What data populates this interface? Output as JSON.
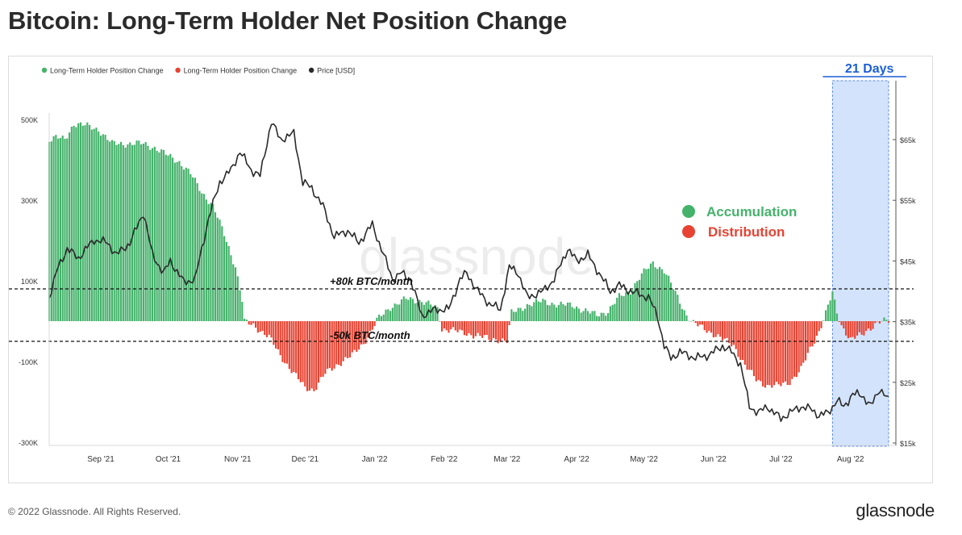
{
  "title": "Bitcoin: Long-Term Holder Net Position Change",
  "footer": {
    "copyright": "© 2022 Glassnode. All Rights Reserved.",
    "brand": "glassnode"
  },
  "watermark": "glassnode",
  "colors": {
    "positive": "#45b26b",
    "negative": "#e84332",
    "price": "#2a2a2a",
    "highlight": "#cfe0fb",
    "highlight_border": "#4a7fe0",
    "window_text": "#1a5fd6"
  },
  "chart_data": {
    "type": "bar",
    "legend": [
      {
        "label": "Long-Term Holder Position Change",
        "color": "#45b26b"
      },
      {
        "label": "Long-Term Holder Position Change",
        "color": "#e84332"
      },
      {
        "label": "Price [USD]",
        "color": "#2a2a2a"
      }
    ],
    "legend_position": "top-left",
    "x_ticks": [
      "Sep '21",
      "Oct '21",
      "Nov '21",
      "Dec '21",
      "Jan '22",
      "Feb '22",
      "Mar '22",
      "Apr '22",
      "May '22",
      "Jun '22",
      "Jul '22",
      "Aug '22"
    ],
    "x_range": [
      "2021-08-09",
      "2022-08-18"
    ],
    "y_left": {
      "label": "",
      "ticks": [
        "500K",
        "300K",
        "100K",
        "-100K",
        "-300K"
      ],
      "tick_values": [
        500000,
        300000,
        100000,
        -100000,
        -300000
      ],
      "range": [
        -300000,
        500000
      ]
    },
    "y_right": {
      "label": "",
      "ticks": [
        "$65k",
        "$55k",
        "$45k",
        "$35k",
        "$25k",
        "$15k"
      ],
      "tick_values": [
        65000,
        55000,
        45000,
        35000,
        25000,
        15000
      ],
      "range": [
        15000,
        70000
      ]
    },
    "grid": false,
    "position_change_keyframes": [
      [
        "2021-08-09",
        450000
      ],
      [
        "2021-08-12",
        455000
      ],
      [
        "2021-08-16",
        450000
      ],
      [
        "2021-08-20",
        490000
      ],
      [
        "2021-08-25",
        485000
      ],
      [
        "2021-08-31",
        475000
      ],
      [
        "2021-09-06",
        440000
      ],
      [
        "2021-09-12",
        440000
      ],
      [
        "2021-09-20",
        440000
      ],
      [
        "2021-09-25",
        430000
      ],
      [
        "2021-10-01",
        410000
      ],
      [
        "2021-10-06",
        395000
      ],
      [
        "2021-10-11",
        365000
      ],
      [
        "2021-10-16",
        320000
      ],
      [
        "2021-10-21",
        285000
      ],
      [
        "2021-10-26",
        215000
      ],
      [
        "2021-10-31",
        135000
      ],
      [
        "2021-11-03",
        50000
      ],
      [
        "2021-11-04",
        -2000
      ],
      [
        "2021-11-08",
        -10000
      ],
      [
        "2021-11-15",
        -40000
      ],
      [
        "2021-11-20",
        -85000
      ],
      [
        "2021-11-26",
        -130000
      ],
      [
        "2021-12-01",
        -165000
      ],
      [
        "2021-12-05",
        -170000
      ],
      [
        "2021-12-10",
        -130000
      ],
      [
        "2021-12-16",
        -105000
      ],
      [
        "2021-12-22",
        -85000
      ],
      [
        "2021-12-27",
        -55000
      ],
      [
        "2021-12-31",
        -20000
      ],
      [
        "2022-01-02",
        2000
      ],
      [
        "2022-01-08",
        35000
      ],
      [
        "2022-01-15",
        55000
      ],
      [
        "2022-01-22",
        50000
      ],
      [
        "2022-01-26",
        40000
      ],
      [
        "2022-01-29",
        30000
      ],
      [
        "2022-01-31",
        -20000
      ],
      [
        "2022-02-04",
        -20000
      ],
      [
        "2022-02-09",
        -30000
      ],
      [
        "2022-02-16",
        -35000
      ],
      [
        "2022-02-21",
        -45000
      ],
      [
        "2022-02-26",
        -45000
      ],
      [
        "2022-03-01",
        -50000
      ],
      [
        "2022-03-03",
        20000
      ],
      [
        "2022-03-10",
        40000
      ],
      [
        "2022-03-17",
        50000
      ],
      [
        "2022-03-24",
        40000
      ],
      [
        "2022-03-30",
        40000
      ],
      [
        "2022-04-05",
        25000
      ],
      [
        "2022-04-10",
        15000
      ],
      [
        "2022-04-15",
        25000
      ],
      [
        "2022-04-20",
        60000
      ],
      [
        "2022-04-25",
        75000
      ],
      [
        "2022-04-30",
        115000
      ],
      [
        "2022-05-05",
        145000
      ],
      [
        "2022-05-10",
        125000
      ],
      [
        "2022-05-16",
        60000
      ],
      [
        "2022-05-20",
        15000
      ],
      [
        "2022-05-23",
        -5000
      ],
      [
        "2022-05-30",
        -25000
      ],
      [
        "2022-06-05",
        -45000
      ],
      [
        "2022-06-10",
        -60000
      ],
      [
        "2022-06-15",
        -110000
      ],
      [
        "2022-06-20",
        -145000
      ],
      [
        "2022-06-25",
        -160000
      ],
      [
        "2022-06-30",
        -160000
      ],
      [
        "2022-07-05",
        -150000
      ],
      [
        "2022-07-10",
        -120000
      ],
      [
        "2022-07-14",
        -70000
      ],
      [
        "2022-07-18",
        -25000
      ],
      [
        "2022-07-21",
        20000
      ],
      [
        "2022-07-24",
        70000
      ],
      [
        "2022-07-26",
        20000
      ],
      [
        "2022-07-28",
        -10000
      ],
      [
        "2022-08-01",
        -45000
      ],
      [
        "2022-08-06",
        -35000
      ],
      [
        "2022-08-09",
        -20000
      ],
      [
        "2022-08-13",
        -3000
      ],
      [
        "2022-08-17",
        0
      ]
    ],
    "price_keyframes": [
      [
        "2021-08-09",
        39000
      ],
      [
        "2021-08-13",
        44000
      ],
      [
        "2021-08-17",
        47000
      ],
      [
        "2021-08-22",
        45500
      ],
      [
        "2021-08-29",
        48500
      ],
      [
        "2021-09-04",
        48000
      ],
      [
        "2021-09-08",
        46000
      ],
      [
        "2021-09-14",
        48000
      ],
      [
        "2021-09-20",
        53000
      ],
      [
        "2021-09-24",
        46000
      ],
      [
        "2021-09-29",
        43000
      ],
      [
        "2021-10-02",
        45000
      ],
      [
        "2021-10-08",
        41500
      ],
      [
        "2021-10-13",
        42000
      ],
      [
        "2021-10-19",
        52000
      ],
      [
        "2021-10-24",
        58000
      ],
      [
        "2021-10-29",
        60000
      ],
      [
        "2021-11-02",
        63000
      ],
      [
        "2021-11-07",
        60000
      ],
      [
        "2021-11-11",
        59000
      ],
      [
        "2021-11-16",
        68000
      ],
      [
        "2021-11-20",
        65000
      ],
      [
        "2021-11-26",
        66000
      ],
      [
        "2021-11-30",
        58000
      ],
      [
        "2021-12-04",
        57000
      ],
      [
        "2021-12-09",
        54000
      ],
      [
        "2021-12-14",
        49000
      ],
      [
        "2021-12-20",
        50000
      ],
      [
        "2021-12-25",
        48000
      ],
      [
        "2021-12-31",
        51000
      ],
      [
        "2022-01-04",
        47000
      ],
      [
        "2022-01-09",
        42000
      ],
      [
        "2022-01-13",
        43000
      ],
      [
        "2022-01-17",
        42000
      ],
      [
        "2022-01-22",
        36000
      ],
      [
        "2022-01-28",
        37000
      ],
      [
        "2022-02-03",
        37000
      ],
      [
        "2022-02-08",
        42000
      ],
      [
        "2022-02-11",
        43000
      ],
      [
        "2022-02-16",
        40000
      ],
      [
        "2022-02-21",
        38000
      ],
      [
        "2022-02-26",
        37000
      ],
      [
        "2022-03-02",
        44000
      ],
      [
        "2022-03-06",
        43000
      ],
      [
        "2022-03-10",
        39000
      ],
      [
        "2022-03-17",
        40000
      ],
      [
        "2022-03-22",
        42000
      ],
      [
        "2022-03-28",
        47000
      ],
      [
        "2022-04-01",
        45000
      ],
      [
        "2022-04-06",
        46000
      ],
      [
        "2022-04-11",
        43000
      ],
      [
        "2022-04-16",
        40000
      ],
      [
        "2022-04-20",
        41000
      ],
      [
        "2022-04-25",
        40000
      ],
      [
        "2022-05-03",
        39000
      ],
      [
        "2022-05-07",
        36000
      ],
      [
        "2022-05-10",
        31000
      ],
      [
        "2022-05-13",
        29000
      ],
      [
        "2022-05-17",
        30000
      ],
      [
        "2022-05-24",
        29000
      ],
      [
        "2022-05-30",
        29500
      ],
      [
        "2022-06-05",
        31000
      ],
      [
        "2022-06-09",
        30000
      ],
      [
        "2022-06-13",
        28000
      ],
      [
        "2022-06-17",
        21000
      ],
      [
        "2022-06-21",
        20000
      ],
      [
        "2022-06-25",
        21000
      ],
      [
        "2022-07-01",
        19000
      ],
      [
        "2022-07-05",
        20000
      ],
      [
        "2022-07-10",
        21000
      ],
      [
        "2022-07-15",
        20500
      ],
      [
        "2022-07-18",
        19500
      ],
      [
        "2022-07-22",
        20000
      ],
      [
        "2022-07-26",
        22000
      ],
      [
        "2022-07-29",
        21000
      ],
      [
        "2022-08-02",
        23000
      ],
      [
        "2022-08-06",
        23000
      ],
      [
        "2022-08-10",
        21000
      ],
      [
        "2022-08-14",
        24000
      ],
      [
        "2022-08-18",
        22000
      ]
    ],
    "reference_lines": [
      {
        "label": "+80k BTC/month",
        "value": 80000
      },
      {
        "label": "-50k BTC/month",
        "value": -50000
      }
    ],
    "annotations": {
      "accumulation": "Accumulation",
      "distribution": "Distribution"
    },
    "highlight_window": {
      "label": "21 Days",
      "start": "2022-07-24",
      "end": "2022-08-18"
    }
  }
}
